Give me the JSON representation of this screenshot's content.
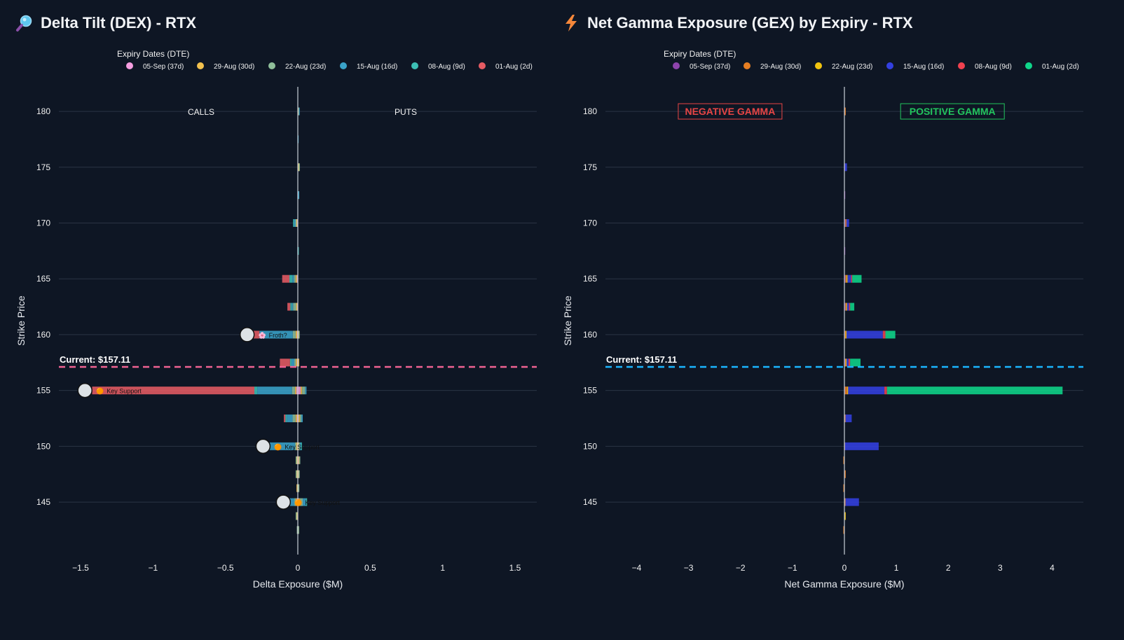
{
  "chart_data": [
    {
      "id": "dex",
      "type": "bar",
      "orientation": "horizontal",
      "stacked": true,
      "title": "Delta Tilt (DEX) - RTX",
      "title_icon": "magnifier-icon",
      "xlabel": "Delta Exposure ($M)",
      "ylabel": "Strike Price",
      "xlim": [
        -1.65,
        1.65
      ],
      "ylim": [
        140.3,
        182.2
      ],
      "xticks": [
        -1.5,
        -1,
        -0.5,
        0,
        0.5,
        1,
        1.5
      ],
      "xtick_labels": [
        "−1.5",
        "−1",
        "−0.5",
        "0",
        "0.5",
        "1",
        "1.5"
      ],
      "yticks": [
        145,
        150,
        155,
        160,
        165,
        170,
        175,
        180
      ],
      "grid": true,
      "legend": {
        "title": "Expiry Dates (DTE)",
        "placement": "top",
        "entries": [
          {
            "label": "05-Sep (37d)",
            "color": "#f59ee0"
          },
          {
            "label": "29-Aug (30d)",
            "color": "#f2c14e"
          },
          {
            "label": "22-Aug (23d)",
            "color": "#8fbf9a"
          },
          {
            "label": "15-Aug (16d)",
            "color": "#3aa3c9"
          },
          {
            "label": "08-Aug (9d)",
            "color": "#3cbfb4"
          },
          {
            "label": "01-Aug (2d)",
            "color": "#e55b63"
          }
        ]
      },
      "side_labels": {
        "left": "CALLS",
        "right": "PUTS"
      },
      "current": {
        "label": "Current: $157.11",
        "value": 157.11,
        "color": "#f06292"
      },
      "bars": [
        {
          "strike": 180,
          "segments": [
            0.003,
            0.004,
            0,
            0.004,
            0,
            0
          ]
        },
        {
          "strike": 177.5,
          "segments": [
            0,
            0,
            0,
            0.003,
            0,
            0
          ]
        },
        {
          "strike": 175,
          "segments": [
            0.004,
            0.004,
            0.005,
            0,
            0,
            0
          ]
        },
        {
          "strike": 172.5,
          "segments": [
            0.002,
            0,
            0.003,
            0.002,
            0,
            0
          ]
        },
        {
          "strike": 170,
          "segments": [
            -0.006,
            -0.004,
            -0.006,
            -0.01,
            -0.006,
            0
          ]
        },
        {
          "strike": 167.5,
          "segments": [
            0,
            0,
            0,
            0.002,
            0.002,
            0
          ]
        },
        {
          "strike": 165,
          "segments": [
            -0.006,
            -0.01,
            -0.01,
            -0.012,
            -0.02,
            -0.05
          ]
        },
        {
          "strike": 162.5,
          "segments": [
            -0.004,
            -0.008,
            -0.02,
            -0.01,
            -0.01,
            -0.02
          ]
        },
        {
          "strike": 160,
          "segments": [
            -0.005,
            -0.01,
            -0.02,
            -0.23,
            0,
            -0.07
          ]
        },
        {
          "strike": 160,
          "segments": [
            0.004,
            0.004,
            0.002,
            0,
            0,
            0
          ]
        },
        {
          "strike": 157.5,
          "segments": [
            -0.004,
            -0.01,
            -0.01,
            -0.02,
            -0.01,
            -0.07
          ]
        },
        {
          "strike": 157.5,
          "segments": [
            0.004,
            0.003,
            0,
            0,
            0,
            0
          ]
        },
        {
          "strike": 155,
          "segments": [
            -0.01,
            -0.01,
            -0.02,
            -0.24,
            -0.02,
            -1.12
          ]
        },
        {
          "strike": 155,
          "segments": [
            0.02,
            0.01,
            0.02,
            0.01,
            0,
            0
          ]
        },
        {
          "strike": 152.5,
          "segments": [
            -0.006,
            -0.01,
            -0.02,
            -0.04,
            -0.01,
            -0.01
          ]
        },
        {
          "strike": 152.5,
          "segments": [
            0.004,
            0.01,
            0.01,
            0.01,
            0,
            0
          ]
        },
        {
          "strike": 150,
          "segments": [
            -0.004,
            -0.006,
            -0.01,
            -0.18,
            -0.02,
            0
          ]
        },
        {
          "strike": 150,
          "segments": [
            0.003,
            0.004,
            0.006,
            0.01,
            0.003,
            0
          ]
        },
        {
          "strike": 148.75,
          "segments": [
            -0.004,
            -0.004,
            -0.006,
            0,
            0,
            0
          ]
        },
        {
          "strike": 148.75,
          "segments": [
            0.006,
            0.004,
            0.006,
            0,
            0,
            0
          ]
        },
        {
          "strike": 147.5,
          "segments": [
            -0.003,
            -0.006,
            -0.004,
            0,
            0,
            0
          ]
        },
        {
          "strike": 147.5,
          "segments": [
            0.004,
            0.004,
            0.002,
            0,
            0,
            0
          ]
        },
        {
          "strike": 146.25,
          "segments": [
            -0.004,
            -0.002,
            0,
            0,
            0,
            0
          ]
        },
        {
          "strike": 146.25,
          "segments": [
            0.003,
            0.002,
            0.003,
            0,
            0,
            0
          ]
        },
        {
          "strike": 145,
          "segments": [
            -0.006,
            -0.008,
            -0.01,
            -0.06,
            -0.02,
            -0.02
          ]
        },
        {
          "strike": 145,
          "segments": [
            0.004,
            0.01,
            0.02,
            0.02,
            0.01,
            0
          ]
        },
        {
          "strike": 143.75,
          "segments": [
            -0.004,
            -0.004,
            -0.006,
            0,
            0,
            0
          ]
        },
        {
          "strike": 142.5,
          "segments": [
            -0.002,
            0,
            -0.002,
            0,
            0,
            0
          ]
        },
        {
          "strike": 142.5,
          "segments": [
            0.002,
            0.002,
            0.002,
            0,
            0,
            0
          ]
        }
      ],
      "markers": [
        {
          "strike": 160,
          "x": -0.35,
          "label": "Froth?",
          "emoji": "🌸"
        },
        {
          "strike": 155,
          "x": -1.47,
          "label": "Key Support",
          "emoji": "🟠"
        },
        {
          "strike": 150,
          "x": -0.24,
          "label": "Key Support",
          "emoji": "🟠"
        },
        {
          "strike": 145,
          "x": -0.1,
          "label": "Key Support",
          "emoji": "🟠"
        }
      ]
    },
    {
      "id": "gex",
      "type": "bar",
      "orientation": "horizontal",
      "stacked": true,
      "title": "Net Gamma Exposure (GEX) by Expiry - RTX",
      "title_icon": "lightning-icon",
      "xlabel": "Net Gamma Exposure ($M)",
      "ylabel": "Strike Price",
      "xlim": [
        -4.6,
        4.6
      ],
      "ylim": [
        140.3,
        182.2
      ],
      "xticks": [
        -4,
        -3,
        -2,
        -1,
        0,
        1,
        2,
        3,
        4
      ],
      "xtick_labels": [
        "−4",
        "−3",
        "−2",
        "−1",
        "0",
        "1",
        "2",
        "3",
        "4"
      ],
      "yticks": [
        145,
        150,
        155,
        160,
        165,
        170,
        175,
        180
      ],
      "grid": true,
      "legend": {
        "title": "Expiry Dates (DTE)",
        "placement": "top",
        "entries": [
          {
            "label": "05-Sep (37d)",
            "color": "#8e44ad"
          },
          {
            "label": "29-Aug (30d)",
            "color": "#e67e22"
          },
          {
            "label": "22-Aug (23d)",
            "color": "#f1c40f"
          },
          {
            "label": "15-Aug (16d)",
            "color": "#3340e0"
          },
          {
            "label": "08-Aug (9d)",
            "color": "#f0414f"
          },
          {
            "label": "01-Aug (2d)",
            "color": "#0fd68a"
          }
        ]
      },
      "box_labels": {
        "negative": "NEGATIVE GAMMA",
        "positive": "POSITIVE GAMMA",
        "negative_color": "#e84545",
        "positive_color": "#22c55e"
      },
      "current": {
        "label": "Current: $157.11",
        "value": 157.11,
        "color": "#1ab6ff"
      },
      "bars": [
        {
          "strike": 180,
          "segments": [
            0.01,
            0.01,
            0,
            0,
            0,
            0
          ]
        },
        {
          "strike": 175,
          "segments": [
            0.01,
            0,
            0,
            0.04,
            0,
            0
          ]
        },
        {
          "strike": 172.5,
          "segments": [
            0.01,
            0,
            0,
            0,
            0,
            0
          ]
        },
        {
          "strike": 170,
          "segments": [
            0.02,
            0.02,
            0,
            0.05,
            0,
            0
          ]
        },
        {
          "strike": 167.5,
          "segments": [
            0.01,
            0,
            0,
            0,
            0,
            0
          ]
        },
        {
          "strike": 165,
          "segments": [
            0.02,
            0.02,
            0.02,
            0.07,
            0.02,
            0.18
          ]
        },
        {
          "strike": 162.5,
          "segments": [
            0.02,
            0.02,
            0.01,
            0.04,
            0.02,
            0.08
          ]
        },
        {
          "strike": 160,
          "segments": [
            0.01,
            0.02,
            0.01,
            0.7,
            0.05,
            0.19
          ]
        },
        {
          "strike": 157.5,
          "segments": [
            0.02,
            0.01,
            0.01,
            0.04,
            0.03,
            0.2
          ]
        },
        {
          "strike": 155,
          "segments": [
            0.01,
            0.05,
            0.01,
            0.7,
            0.05,
            3.38
          ]
        },
        {
          "strike": 152.5,
          "segments": [
            0.01,
            0.01,
            0,
            0.12,
            0,
            0
          ]
        },
        {
          "strike": 150,
          "segments": [
            0,
            0.01,
            0,
            0.65,
            0,
            0
          ]
        },
        {
          "strike": 148.75,
          "segments": [
            0,
            -0.02,
            0,
            0,
            0,
            0
          ]
        },
        {
          "strike": 147.5,
          "segments": [
            0.01,
            0.01,
            0,
            0,
            0,
            0
          ]
        },
        {
          "strike": 146.25,
          "segments": [
            0,
            -0.02,
            0,
            0,
            0,
            0
          ]
        },
        {
          "strike": 145,
          "segments": [
            0.01,
            0.01,
            0,
            0.26,
            0,
            0
          ]
        },
        {
          "strike": 143.75,
          "segments": [
            0,
            0.01,
            0.01,
            0,
            0,
            0
          ]
        },
        {
          "strike": 142.5,
          "segments": [
            0,
            -0.02,
            0,
            0,
            0,
            0
          ]
        }
      ]
    }
  ]
}
